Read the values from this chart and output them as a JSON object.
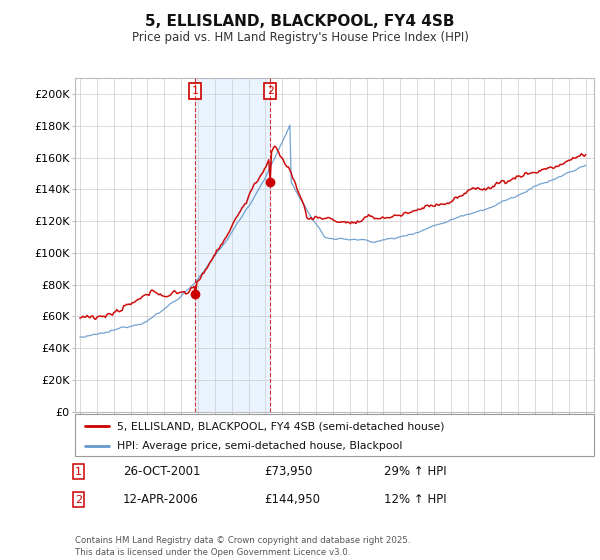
{
  "title": "5, ELLISLAND, BLACKPOOL, FY4 4SB",
  "subtitle": "Price paid vs. HM Land Registry's House Price Index (HPI)",
  "ylim": [
    0,
    210000
  ],
  "yticks": [
    0,
    20000,
    40000,
    60000,
    80000,
    100000,
    120000,
    140000,
    160000,
    180000,
    200000
  ],
  "property_color": "#cc0000",
  "hpi_color": "#6699cc",
  "hpi_fill_color": "#ddeeff",
  "sale1_x": 2001.82,
  "sale2_x": 2006.28,
  "sale1_price": 73950,
  "sale2_price": 144950,
  "legend_property": "5, ELLISLAND, BLACKPOOL, FY4 4SB (semi-detached house)",
  "legend_hpi": "HPI: Average price, semi-detached house, Blackpool",
  "sale1_date": "26-OCT-2001",
  "sale1_price_str": "£73,950",
  "sale1_hpi": "29% ↑ HPI",
  "sale2_date": "12-APR-2006",
  "sale2_price_str": "£144,950",
  "sale2_hpi": "12% ↑ HPI",
  "footer": "Contains HM Land Registry data © Crown copyright and database right 2025.\nThis data is licensed under the Open Government Licence v3.0.",
  "background_color": "#ffffff",
  "grid_color": "#cccccc"
}
